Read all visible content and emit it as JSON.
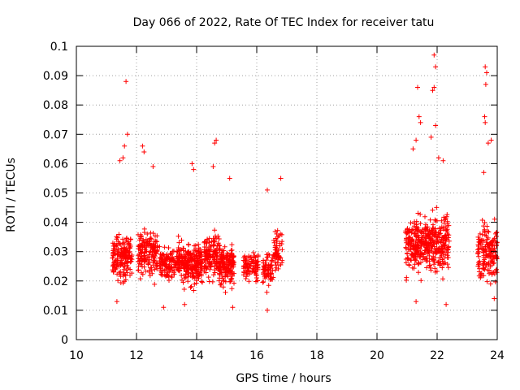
{
  "chart_data": {
    "type": "scatter",
    "title": "Day 066 of 2022, Rate Of TEC Index for receiver tatu",
    "xlabel": "GPS time / hours",
    "ylabel": "ROTI / TECUs",
    "xlim": [
      10,
      24
    ],
    "ylim": [
      0,
      0.1
    ],
    "xticks": [
      10,
      12,
      14,
      16,
      18,
      20,
      22,
      24
    ],
    "xtick_labels": [
      "10",
      "12",
      "14",
      "16",
      "18",
      "20",
      "22",
      "24"
    ],
    "yticks": [
      0,
      0.01,
      0.02,
      0.03,
      0.04,
      0.05,
      0.06,
      0.07,
      0.08,
      0.09,
      0.1
    ],
    "ytick_labels": [
      "0",
      "0.01",
      "0.02",
      "0.03",
      "0.04",
      "0.05",
      "0.06",
      "0.07",
      "0.08",
      "0.09",
      "0.1"
    ],
    "grid": true,
    "marker": "+",
    "color": "#ff0000",
    "clusters": [
      {
        "x_start": 11.2,
        "x_end": 11.85,
        "y_center": 0.028,
        "y_spread": 0.012,
        "count": 180
      },
      {
        "x_start": 12.05,
        "x_end": 12.7,
        "y_center": 0.029,
        "y_spread": 0.012,
        "count": 170
      },
      {
        "x_start": 12.75,
        "x_end": 13.35,
        "y_center": 0.026,
        "y_spread": 0.008,
        "count": 120
      },
      {
        "x_start": 13.35,
        "x_end": 14.2,
        "y_center": 0.026,
        "y_spread": 0.011,
        "count": 260
      },
      {
        "x_start": 14.25,
        "x_end": 14.75,
        "y_center": 0.028,
        "y_spread": 0.012,
        "count": 140
      },
      {
        "x_start": 14.75,
        "x_end": 15.25,
        "y_center": 0.025,
        "y_spread": 0.011,
        "count": 160
      },
      {
        "x_start": 15.55,
        "x_end": 16.05,
        "y_center": 0.025,
        "y_spread": 0.008,
        "count": 90
      },
      {
        "x_start": 16.2,
        "x_end": 16.55,
        "y_center": 0.024,
        "y_spread": 0.009,
        "count": 70
      },
      {
        "x_start": 16.55,
        "x_end": 16.85,
        "y_center": 0.03,
        "y_spread": 0.01,
        "count": 60
      },
      {
        "x_start": 20.95,
        "x_end": 21.55,
        "y_center": 0.032,
        "y_spread": 0.014,
        "count": 180
      },
      {
        "x_start": 21.55,
        "x_end": 22.4,
        "y_center": 0.033,
        "y_spread": 0.015,
        "count": 240
      },
      {
        "x_start": 23.35,
        "x_end": 24.0,
        "y_center": 0.03,
        "y_spread": 0.014,
        "count": 160
      }
    ],
    "outliers": [
      {
        "x": 11.65,
        "y": 0.088
      },
      {
        "x": 11.7,
        "y": 0.07
      },
      {
        "x": 11.6,
        "y": 0.066
      },
      {
        "x": 11.55,
        "y": 0.062
      },
      {
        "x": 11.45,
        "y": 0.061
      },
      {
        "x": 12.2,
        "y": 0.066
      },
      {
        "x": 12.25,
        "y": 0.064
      },
      {
        "x": 12.55,
        "y": 0.059
      },
      {
        "x": 13.85,
        "y": 0.06
      },
      {
        "x": 13.9,
        "y": 0.058
      },
      {
        "x": 14.6,
        "y": 0.067
      },
      {
        "x": 14.65,
        "y": 0.068
      },
      {
        "x": 14.55,
        "y": 0.059
      },
      {
        "x": 15.1,
        "y": 0.055
      },
      {
        "x": 16.35,
        "y": 0.051
      },
      {
        "x": 16.8,
        "y": 0.055
      },
      {
        "x": 16.35,
        "y": 0.01
      },
      {
        "x": 15.2,
        "y": 0.011
      },
      {
        "x": 21.9,
        "y": 0.097
      },
      {
        "x": 21.95,
        "y": 0.093
      },
      {
        "x": 21.9,
        "y": 0.086
      },
      {
        "x": 21.85,
        "y": 0.085
      },
      {
        "x": 21.35,
        "y": 0.086
      },
      {
        "x": 21.4,
        "y": 0.076
      },
      {
        "x": 21.45,
        "y": 0.074
      },
      {
        "x": 21.3,
        "y": 0.068
      },
      {
        "x": 21.8,
        "y": 0.069
      },
      {
        "x": 21.95,
        "y": 0.073
      },
      {
        "x": 22.05,
        "y": 0.062
      },
      {
        "x": 22.2,
        "y": 0.061
      },
      {
        "x": 21.2,
        "y": 0.065
      },
      {
        "x": 23.6,
        "y": 0.093
      },
      {
        "x": 23.65,
        "y": 0.091
      },
      {
        "x": 23.62,
        "y": 0.087
      },
      {
        "x": 23.58,
        "y": 0.076
      },
      {
        "x": 23.6,
        "y": 0.074
      },
      {
        "x": 23.7,
        "y": 0.067
      },
      {
        "x": 23.8,
        "y": 0.068
      },
      {
        "x": 23.55,
        "y": 0.057
      },
      {
        "x": 21.3,
        "y": 0.013
      },
      {
        "x": 22.3,
        "y": 0.012
      },
      {
        "x": 23.9,
        "y": 0.014
      },
      {
        "x": 11.35,
        "y": 0.013
      },
      {
        "x": 12.9,
        "y": 0.011
      },
      {
        "x": 13.6,
        "y": 0.012
      }
    ]
  }
}
